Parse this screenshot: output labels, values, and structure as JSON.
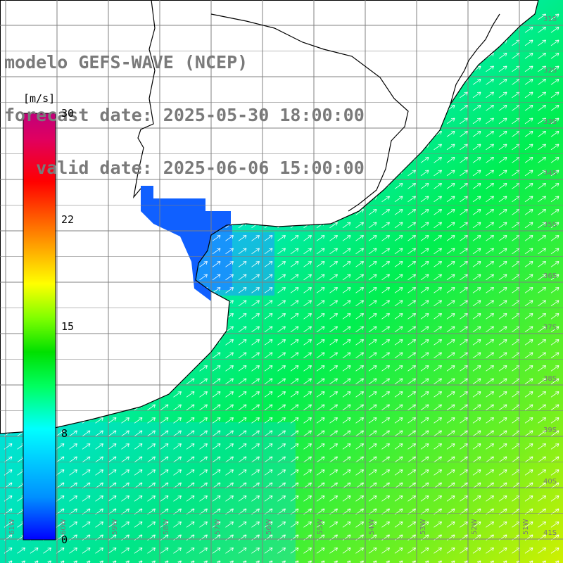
{
  "title": {
    "model": "modelo GEFS-WAVE (NCEP)",
    "forecast": "forecast date: 2025-05-30 18:00:00",
    "valid": "   valid date: 2025-06-06 15:00:00"
  },
  "colorbar": {
    "unit": "[m/s]",
    "min": 0,
    "max": 30,
    "ticks": [
      "30",
      "22",
      "15",
      "8",
      "0"
    ],
    "stops": [
      "#0000ff",
      "#0090ff",
      "#00ffff",
      "#00ff60",
      "#00e000",
      "#80ff00",
      "#ffff00",
      "#ff8000",
      "#ff0000",
      "#e00060",
      "#c0007a"
    ]
  },
  "map": {
    "lat_labels": [
      "31S",
      "32S",
      "33S",
      "34S",
      "35S",
      "36S",
      "37S",
      "38S",
      "39S",
      "40S",
      "41S"
    ],
    "lon_labels": [
      "61W",
      "60W",
      "59W",
      "58W",
      "57W",
      "56W",
      "55W",
      "54W",
      "53W",
      "52W",
      "51W"
    ],
    "land_color": "#ffffff",
    "grid_color": "#808080",
    "coast_color": "#000000",
    "arrow_color": "#ffffff"
  }
}
